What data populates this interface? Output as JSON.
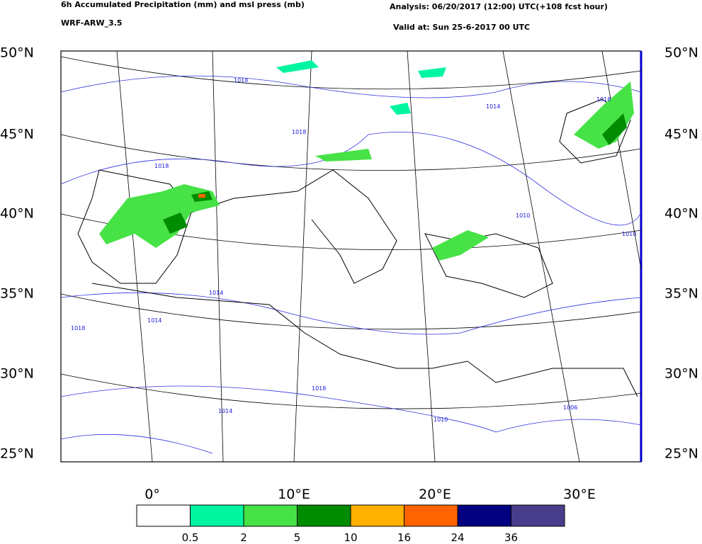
{
  "header": {
    "title": "6h Accumulated Precipitation (mm) and msl press (mb)",
    "model": "WRF-ARW_3.5",
    "analysis": "Analysis: 06/20/2017 (12:00) UTC(+108 fcst hour)",
    "valid": "Valid at: Sun 25-6-2017 00 UTC"
  },
  "map": {
    "lat_labels": [
      "50°N",
      "45°N",
      "40°N",
      "35°N",
      "30°N",
      "25°N"
    ],
    "lon_labels": [
      "0°",
      "10°E",
      "20°E",
      "30°E"
    ],
    "isobar_labels": [
      "1018",
      "1018",
      "1018",
      "1014",
      "1018",
      "1010",
      "1010",
      "1014",
      "1018",
      "1014",
      "1018",
      "1014",
      "1010",
      "1006"
    ]
  },
  "colorbar": {
    "thresholds": [
      0.5,
      2,
      5,
      10,
      16,
      24,
      36
    ],
    "colors": [
      "#ffffff",
      "#00f5a0",
      "#46e246",
      "#008c00",
      "#ffb000",
      "#ff6400",
      "#000080",
      "#483d8b"
    ]
  }
}
